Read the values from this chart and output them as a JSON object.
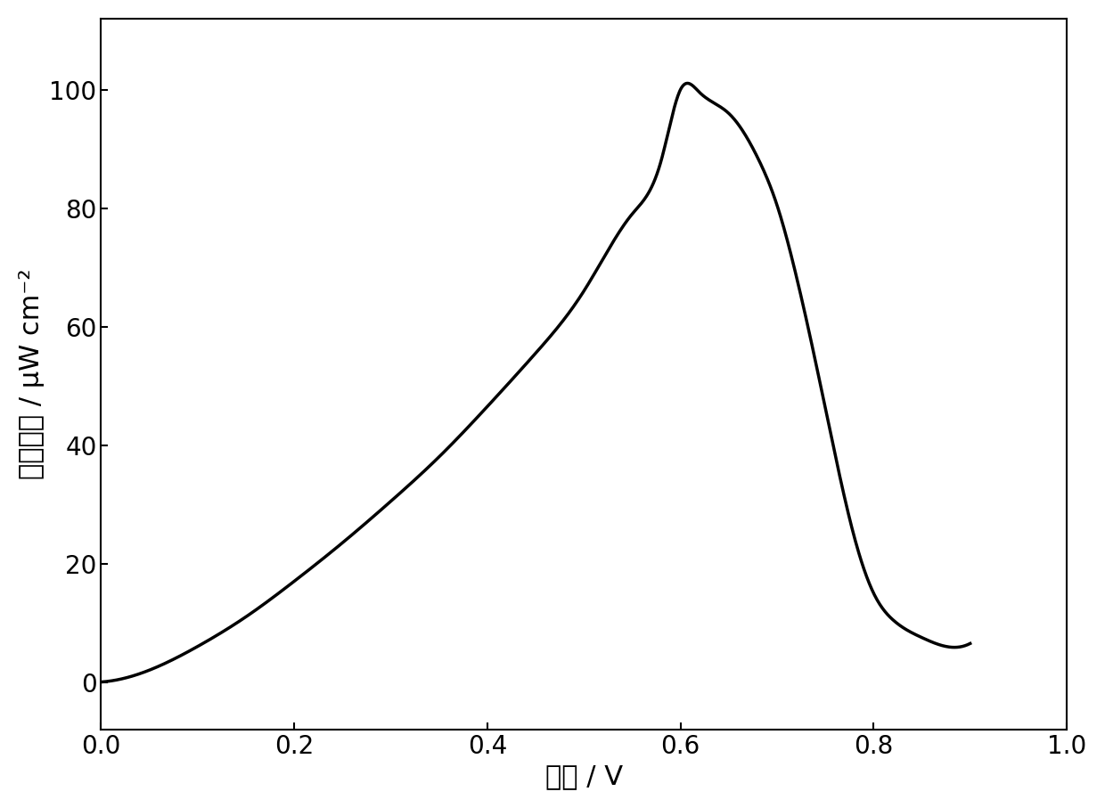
{
  "xlabel": "电位 / V",
  "ylabel": "功率密度 / μW cm⁻²",
  "xlim": [
    0.0,
    1.0
  ],
  "ylim": [
    -8,
    112
  ],
  "xticks": [
    0.0,
    0.2,
    0.4,
    0.6,
    0.8,
    1.0
  ],
  "yticks": [
    0,
    20,
    40,
    60,
    80,
    100
  ],
  "line_color": "#000000",
  "line_width": 2.5,
  "background_color": "#ffffff",
  "curve_x": [
    0.0,
    0.05,
    0.1,
    0.15,
    0.2,
    0.25,
    0.3,
    0.35,
    0.4,
    0.45,
    0.5,
    0.55,
    0.58,
    0.6,
    0.62,
    0.65,
    0.68,
    0.7,
    0.72,
    0.74,
    0.76,
    0.78,
    0.8,
    0.82,
    0.85,
    0.875,
    0.9
  ],
  "curve_y": [
    0.0,
    2.0,
    6.0,
    11.0,
    17.0,
    23.5,
    30.5,
    38.0,
    46.5,
    55.5,
    66.0,
    79.0,
    88.0,
    100.0,
    99.5,
    96.0,
    88.5,
    80.5,
    68.5,
    54.0,
    38.5,
    24.5,
    15.0,
    10.5,
    7.5,
    6.0,
    6.5
  ],
  "tick_fontsize": 20,
  "label_fontsize": 22
}
